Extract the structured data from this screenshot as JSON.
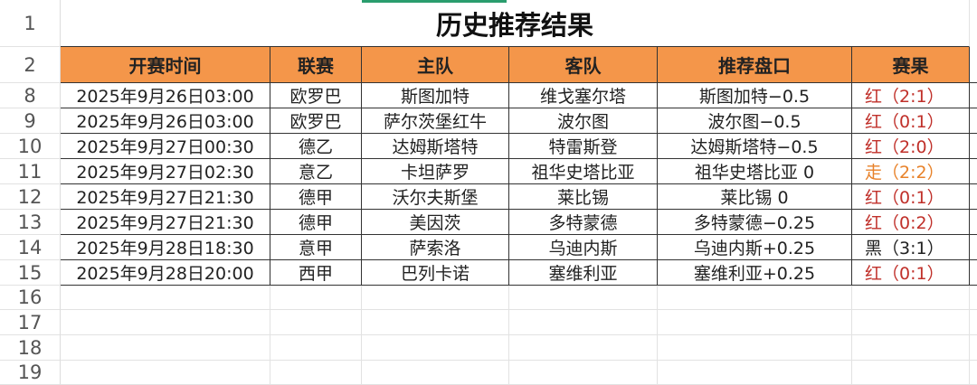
{
  "sheet": {
    "title": "历史推荐结果",
    "row_numbers": [
      "1",
      "2",
      "8",
      "9",
      "10",
      "11",
      "12",
      "13",
      "14",
      "15",
      "16",
      "17",
      "18",
      "19"
    ],
    "headers": [
      "开赛时间",
      "联赛",
      "主队",
      "客队",
      "推荐盘口",
      "赛果"
    ],
    "rows": [
      [
        "2025年9月26日03:00",
        "欧罗巴",
        "斯图加特",
        "维戈塞尔塔",
        "斯图加特−0.5",
        "红（2:1）",
        "red"
      ],
      [
        "2025年9月26日03:00",
        "欧罗巴",
        "萨尔茨堡红牛",
        "波尔图",
        "波尔图−0.5",
        "红（0:1）",
        "red"
      ],
      [
        "2025年9月27日00:30",
        "德乙",
        "达姆斯塔特",
        "特雷斯登",
        "达姆斯塔特−0.5",
        "红（2:0）",
        "red"
      ],
      [
        "2025年9月27日02:30",
        "意乙",
        "卡坦萨罗",
        "祖华史塔比亚",
        "祖华史塔比亚 0",
        "走（2:2）",
        "orange"
      ],
      [
        "2025年9月27日21:30",
        "德甲",
        "沃尔夫斯堡",
        "莱比锡",
        "莱比锡 0",
        "红（0:1）",
        "red"
      ],
      [
        "2025年9月27日21:30",
        "德甲",
        "美因茨",
        "多特蒙德",
        "多特蒙德−0.25",
        "红（0:2）",
        "red"
      ],
      [
        "2025年9月28日18:30",
        "意甲",
        "萨索洛",
        "乌迪内斯",
        "乌迪内斯+0.25",
        "黑（3:1）",
        "black"
      ],
      [
        "2025年9月28日20:00",
        "西甲",
        "巴列卡诺",
        "塞维利亚",
        "塞维利亚+0.25",
        "红（0:1）",
        "red"
      ]
    ]
  },
  "colors": {
    "header_bg": "#f4964a",
    "red": "#c0302a",
    "orange": "#e8822a",
    "selection": "#2a9d6e"
  }
}
